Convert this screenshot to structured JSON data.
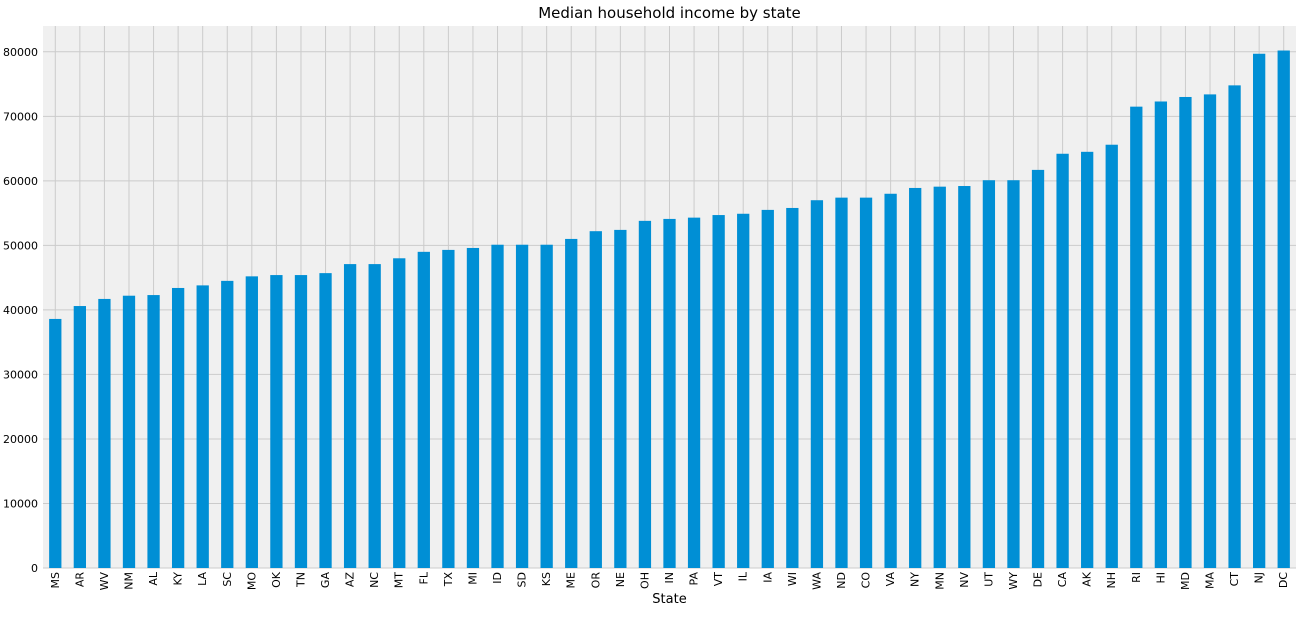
{
  "chart_data": {
    "type": "bar",
    "title": "Median household income by state",
    "xlabel": "State",
    "ylabel": "",
    "ylim": [
      0,
      84000
    ],
    "yticks": [
      0,
      10000,
      20000,
      30000,
      40000,
      50000,
      60000,
      70000,
      80000
    ],
    "ytick_labels": [
      "0",
      "10000",
      "20000",
      "30000",
      "40000",
      "50000",
      "60000",
      "70000",
      "80000"
    ],
    "grid": true,
    "categories": [
      "MS",
      "AR",
      "WV",
      "NM",
      "AL",
      "KY",
      "LA",
      "SC",
      "MO",
      "OK",
      "TN",
      "GA",
      "AZ",
      "NC",
      "MT",
      "FL",
      "TX",
      "MI",
      "ID",
      "SD",
      "KS",
      "ME",
      "OR",
      "NE",
      "OH",
      "IN",
      "PA",
      "VT",
      "IL",
      "IA",
      "WI",
      "WA",
      "ND",
      "CO",
      "VA",
      "NY",
      "MN",
      "NV",
      "UT",
      "WY",
      "DE",
      "CA",
      "AK",
      "NH",
      "RI",
      "HI",
      "MD",
      "MA",
      "CT",
      "NJ",
      "DC"
    ],
    "values": [
      38600,
      40600,
      41700,
      42200,
      42300,
      43400,
      43800,
      44500,
      45200,
      45400,
      45400,
      45700,
      47100,
      47100,
      48000,
      49000,
      49300,
      49600,
      50100,
      50100,
      50100,
      51000,
      52200,
      52400,
      53800,
      54100,
      54300,
      54700,
      54900,
      55500,
      55800,
      57000,
      57400,
      57400,
      58000,
      58900,
      59100,
      59200,
      60100,
      60100,
      61700,
      64200,
      64500,
      65600,
      71500,
      72300,
      73000,
      73400,
      74800,
      79700,
      80200
    ],
    "colors": {
      "bar": "#008fd5",
      "plot_background": "#f0f0f0",
      "grid": "#cbcbcb",
      "figure_background": "#ffffff"
    }
  }
}
